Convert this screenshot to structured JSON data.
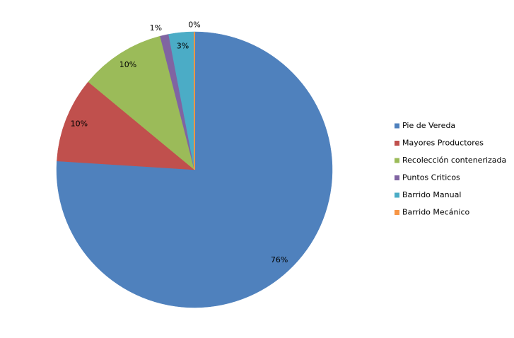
{
  "chart_data": {
    "type": "pie",
    "categories": [
      "Pie de Vereda",
      "Mayores Productores",
      "Recolección contenerizada",
      "Puntos Criticos",
      "Barrido Manual",
      "Barrido Mecánico"
    ],
    "values": [
      76,
      10,
      10,
      1,
      3,
      0
    ],
    "value_labels": [
      "76%",
      "10%",
      "10%",
      "1%",
      "3%",
      "0%"
    ],
    "colors": [
      "#4f81bd",
      "#c0504d",
      "#9bbb59",
      "#8064a2",
      "#4bacc6",
      "#f79646"
    ],
    "legend": "right"
  }
}
